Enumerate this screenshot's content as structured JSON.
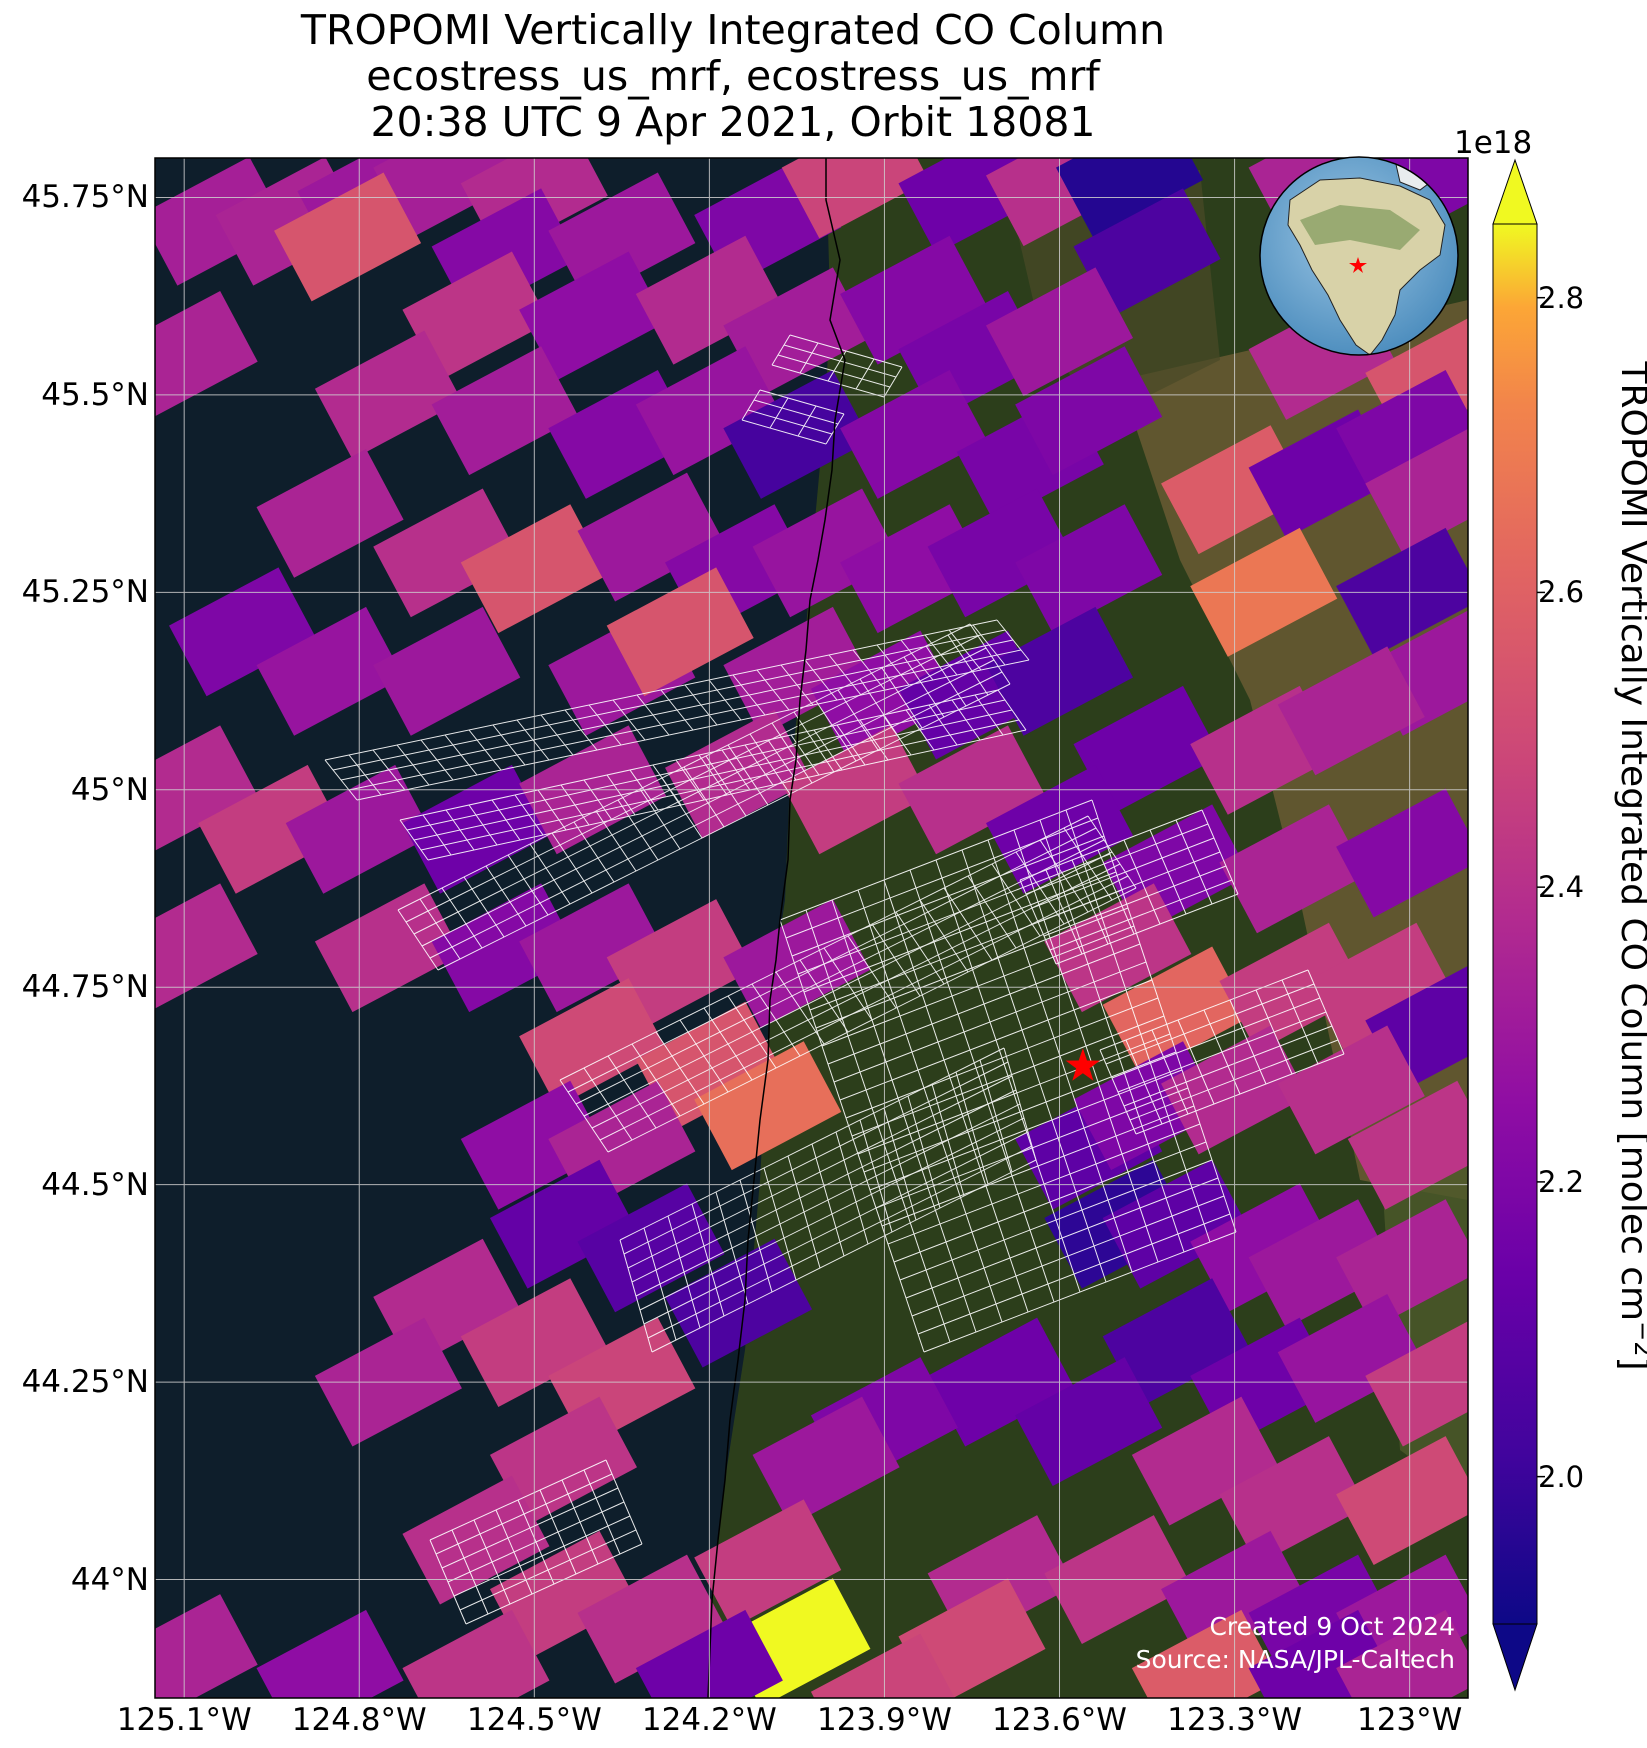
{
  "title": {
    "line1": "TROPOMI Vertically Integrated CO Column",
    "line2": "ecostress_us_mrf, ecostress_us_mrf",
    "line3": "20:38 UTC 9 Apr 2021, Orbit 18081"
  },
  "map": {
    "lat_ticks": [
      "45.75°N",
      "45.5°N",
      "45.25°N",
      "45°N",
      "44.75°N",
      "44.5°N",
      "44.25°N",
      "44°N"
    ],
    "lat_values": [
      45.75,
      45.5,
      45.25,
      45.0,
      44.75,
      44.5,
      44.25,
      44.0
    ],
    "lon_ticks": [
      "125.1°W",
      "124.8°W",
      "124.5°W",
      "124.2°W",
      "123.9°W",
      "123.6°W",
      "123.3°W",
      "123°W"
    ],
    "lon_values": [
      -125.1,
      -124.8,
      -124.5,
      -124.2,
      -123.9,
      -123.6,
      -123.3,
      -123.0
    ],
    "extent": {
      "lon_min": -125.15,
      "lon_max": -122.9,
      "lat_min": 43.85,
      "lat_max": 45.8
    },
    "colors": {
      "ocean": "#0e1e2b",
      "land": "#2c3e1b",
      "farmland": "#6a5a33",
      "grid": "#cfcfcf",
      "coast": "#000000",
      "marker": "#ff0000"
    },
    "target_marker": {
      "lon": -123.56,
      "lat": 44.65,
      "symbol": "red-star"
    },
    "inset_globe": {
      "marker": "red-star",
      "center": "North America"
    }
  },
  "colorbar": {
    "label": "TROPOMI Vertically Integrated CO Column [molec cm",
    "label_exponent": "−2",
    "label_close": "]",
    "exponent": "1e18",
    "ticks": [
      "2.0",
      "2.2",
      "2.4",
      "2.6",
      "2.8"
    ],
    "tick_values": [
      2.0,
      2.2,
      2.4,
      2.6,
      2.8
    ],
    "range": [
      1.9,
      2.85
    ],
    "colormap": "plasma",
    "extend": "both"
  },
  "credits": {
    "created": "Created 9 Oct 2024",
    "source": "Source: NASA/JPL-Caltech"
  },
  "chart_data": {
    "type": "heatmap",
    "description_units": "molec cm-2 (x1e18)",
    "xlabel": "",
    "ylabel": "",
    "xlim": [
      -125.15,
      -122.9
    ],
    "ylim": [
      43.85,
      45.8
    ],
    "vmin": 1.9,
    "vmax": 2.85,
    "tropomi_pixels": [
      {
        "lon": -125.05,
        "lat": 45.72,
        "value": 2.33
      },
      {
        "lon": -124.92,
        "lat": 45.72,
        "value": 2.35
      },
      {
        "lon": -124.78,
        "lat": 45.75,
        "value": 2.3
      },
      {
        "lon": -124.65,
        "lat": 45.78,
        "value": 2.33
      },
      {
        "lon": -124.5,
        "lat": 45.76,
        "value": 2.38
      },
      {
        "lon": -124.82,
        "lat": 45.7,
        "value": 2.55
      },
      {
        "lon": -124.55,
        "lat": 45.68,
        "value": 2.22
      },
      {
        "lon": -124.35,
        "lat": 45.7,
        "value": 2.3
      },
      {
        "lon": -124.1,
        "lat": 45.72,
        "value": 2.2
      },
      {
        "lon": -123.95,
        "lat": 45.78,
        "value": 2.48
      },
      {
        "lon": -123.75,
        "lat": 45.76,
        "value": 2.15
      },
      {
        "lon": -123.6,
        "lat": 45.77,
        "value": 2.4
      },
      {
        "lon": -123.48,
        "lat": 45.78,
        "value": 1.95
      },
      {
        "lon": -123.45,
        "lat": 45.68,
        "value": 2.05
      },
      {
        "lon": -123.15,
        "lat": 45.78,
        "value": 2.35
      },
      {
        "lon": -122.95,
        "lat": 45.78,
        "value": 2.2
      },
      {
        "lon": -124.6,
        "lat": 45.6,
        "value": 2.42
      },
      {
        "lon": -124.4,
        "lat": 45.6,
        "value": 2.25
      },
      {
        "lon": -124.2,
        "lat": 45.62,
        "value": 2.38
      },
      {
        "lon": -124.05,
        "lat": 45.58,
        "value": 2.32
      },
      {
        "lon": -123.85,
        "lat": 45.62,
        "value": 2.22
      },
      {
        "lon": -123.75,
        "lat": 45.55,
        "value": 2.18
      },
      {
        "lon": -123.6,
        "lat": 45.58,
        "value": 2.3
      },
      {
        "lon": -123.15,
        "lat": 45.55,
        "value": 2.38
      },
      {
        "lon": -122.95,
        "lat": 45.52,
        "value": 2.55
      },
      {
        "lon": -125.1,
        "lat": 45.55,
        "value": 2.35
      },
      {
        "lon": -124.75,
        "lat": 45.5,
        "value": 2.38
      },
      {
        "lon": -124.55,
        "lat": 45.48,
        "value": 2.32
      },
      {
        "lon": -124.35,
        "lat": 45.45,
        "value": 2.22
      },
      {
        "lon": -124.2,
        "lat": 45.48,
        "value": 2.28
      },
      {
        "lon": -124.05,
        "lat": 45.45,
        "value": 2.03
      },
      {
        "lon": -123.85,
        "lat": 45.45,
        "value": 2.22
      },
      {
        "lon": -123.65,
        "lat": 45.42,
        "value": 2.18
      },
      {
        "lon": -123.55,
        "lat": 45.48,
        "value": 2.2
      },
      {
        "lon": -123.3,
        "lat": 45.38,
        "value": 2.58
      },
      {
        "lon": -123.15,
        "lat": 45.4,
        "value": 2.15
      },
      {
        "lon": -123.0,
        "lat": 45.45,
        "value": 2.2
      },
      {
        "lon": -122.95,
        "lat": 45.38,
        "value": 2.35
      },
      {
        "lon": -124.85,
        "lat": 45.35,
        "value": 2.35
      },
      {
        "lon": -124.65,
        "lat": 45.3,
        "value": 2.4
      },
      {
        "lon": -124.5,
        "lat": 45.28,
        "value": 2.55
      },
      {
        "lon": -124.3,
        "lat": 45.32,
        "value": 2.3
      },
      {
        "lon": -124.15,
        "lat": 45.28,
        "value": 2.22
      },
      {
        "lon": -124.0,
        "lat": 45.3,
        "value": 2.28
      },
      {
        "lon": -123.85,
        "lat": 45.28,
        "value": 2.25
      },
      {
        "lon": -123.7,
        "lat": 45.3,
        "value": 2.18
      },
      {
        "lon": -123.55,
        "lat": 45.28,
        "value": 2.2
      },
      {
        "lon": -123.25,
        "lat": 45.25,
        "value": 2.68
      },
      {
        "lon": -123.0,
        "lat": 45.25,
        "value": 2.05
      },
      {
        "lon": -122.95,
        "lat": 45.15,
        "value": 2.3
      },
      {
        "lon": -125.0,
        "lat": 45.2,
        "value": 2.2
      },
      {
        "lon": -124.85,
        "lat": 45.15,
        "value": 2.28
      },
      {
        "lon": -124.65,
        "lat": 45.15,
        "value": 2.3
      },
      {
        "lon": -124.35,
        "lat": 45.15,
        "value": 2.3
      },
      {
        "lon": -124.25,
        "lat": 45.2,
        "value": 2.55
      },
      {
        "lon": -124.05,
        "lat": 45.15,
        "value": 2.32
      },
      {
        "lon": -123.9,
        "lat": 45.12,
        "value": 2.25
      },
      {
        "lon": -123.75,
        "lat": 45.12,
        "value": 2.12
      },
      {
        "lon": -123.6,
        "lat": 45.15,
        "value": 2.05
      },
      {
        "lon": -123.45,
        "lat": 45.05,
        "value": 2.15
      },
      {
        "lon": -123.25,
        "lat": 45.05,
        "value": 2.4
      },
      {
        "lon": -123.1,
        "lat": 45.1,
        "value": 2.35
      },
      {
        "lon": -125.1,
        "lat": 45.0,
        "value": 2.38
      },
      {
        "lon": -124.95,
        "lat": 44.95,
        "value": 2.45
      },
      {
        "lon": -124.8,
        "lat": 44.95,
        "value": 2.3
      },
      {
        "lon": -124.6,
        "lat": 44.95,
        "value": 2.15
      },
      {
        "lon": -124.4,
        "lat": 45.0,
        "value": 2.35
      },
      {
        "lon": -124.15,
        "lat": 45.02,
        "value": 2.38
      },
      {
        "lon": -123.95,
        "lat": 45.0,
        "value": 2.45
      },
      {
        "lon": -123.75,
        "lat": 45.0,
        "value": 2.4
      },
      {
        "lon": -123.6,
        "lat": 44.95,
        "value": 2.15
      },
      {
        "lon": -123.4,
        "lat": 44.9,
        "value": 2.2
      },
      {
        "lon": -123.2,
        "lat": 44.9,
        "value": 2.35
      },
      {
        "lon": -123.0,
        "lat": 44.92,
        "value": 2.22
      },
      {
        "lon": -125.1,
        "lat": 44.8,
        "value": 2.38
      },
      {
        "lon": -124.75,
        "lat": 44.8,
        "value": 2.4
      },
      {
        "lon": -124.55,
        "lat": 44.8,
        "value": 2.22
      },
      {
        "lon": -124.4,
        "lat": 44.8,
        "value": 2.3
      },
      {
        "lon": -124.25,
        "lat": 44.78,
        "value": 2.45
      },
      {
        "lon": -124.05,
        "lat": 44.78,
        "value": 2.3
      },
      {
        "lon": -123.5,
        "lat": 44.8,
        "value": 2.42
      },
      {
        "lon": -123.4,
        "lat": 44.72,
        "value": 2.62
      },
      {
        "lon": -123.2,
        "lat": 44.75,
        "value": 2.45
      },
      {
        "lon": -123.05,
        "lat": 44.75,
        "value": 2.45
      },
      {
        "lon": -122.95,
        "lat": 44.7,
        "value": 2.1
      },
      {
        "lon": -124.4,
        "lat": 44.68,
        "value": 2.5
      },
      {
        "lon": -124.2,
        "lat": 44.65,
        "value": 2.55
      },
      {
        "lon": -124.1,
        "lat": 44.6,
        "value": 2.65
      },
      {
        "lon": -124.5,
        "lat": 44.55,
        "value": 2.25
      },
      {
        "lon": -124.35,
        "lat": 44.55,
        "value": 2.35
      },
      {
        "lon": -123.55,
        "lat": 44.55,
        "value": 2.1
      },
      {
        "lon": -123.45,
        "lat": 44.6,
        "value": 2.2
      },
      {
        "lon": -123.3,
        "lat": 44.62,
        "value": 2.38
      },
      {
        "lon": -123.1,
        "lat": 44.62,
        "value": 2.4
      },
      {
        "lon": -122.98,
        "lat": 44.55,
        "value": 2.42
      },
      {
        "lon": -124.45,
        "lat": 44.45,
        "value": 2.12
      },
      {
        "lon": -124.3,
        "lat": 44.42,
        "value": 2.08
      },
      {
        "lon": -124.15,
        "lat": 44.35,
        "value": 2.05
      },
      {
        "lon": -123.5,
        "lat": 44.45,
        "value": 1.97
      },
      {
        "lon": -123.4,
        "lat": 44.45,
        "value": 2.1
      },
      {
        "lon": -123.25,
        "lat": 44.42,
        "value": 2.25
      },
      {
        "lon": -123.15,
        "lat": 44.4,
        "value": 2.3
      },
      {
        "lon": -123.0,
        "lat": 44.4,
        "value": 2.35
      },
      {
        "lon": -124.65,
        "lat": 44.35,
        "value": 2.38
      },
      {
        "lon": -124.5,
        "lat": 44.3,
        "value": 2.45
      },
      {
        "lon": -124.35,
        "lat": 44.25,
        "value": 2.48
      },
      {
        "lon": -124.75,
        "lat": 44.25,
        "value": 2.35
      },
      {
        "lon": -124.45,
        "lat": 44.15,
        "value": 2.42
      },
      {
        "lon": -123.4,
        "lat": 44.3,
        "value": 2.05
      },
      {
        "lon": -123.25,
        "lat": 44.25,
        "value": 2.15
      },
      {
        "lon": -123.1,
        "lat": 44.28,
        "value": 2.28
      },
      {
        "lon": -122.95,
        "lat": 44.25,
        "value": 2.45
      },
      {
        "lon": -123.7,
        "lat": 44.25,
        "value": 2.15
      },
      {
        "lon": -123.9,
        "lat": 44.2,
        "value": 2.2
      },
      {
        "lon": -123.55,
        "lat": 44.2,
        "value": 2.12
      },
      {
        "lon": -124.0,
        "lat": 44.15,
        "value": 2.3
      },
      {
        "lon": -123.35,
        "lat": 44.15,
        "value": 2.38
      },
      {
        "lon": -123.2,
        "lat": 44.1,
        "value": 2.4
      },
      {
        "lon": -123.0,
        "lat": 44.1,
        "value": 2.5
      },
      {
        "lon": -124.6,
        "lat": 44.05,
        "value": 2.4
      },
      {
        "lon": -124.45,
        "lat": 43.98,
        "value": 2.45
      },
      {
        "lon": -124.3,
        "lat": 43.95,
        "value": 2.4
      },
      {
        "lon": -124.1,
        "lat": 44.02,
        "value": 2.45
      },
      {
        "lon": -124.05,
        "lat": 43.92,
        "value": 2.85
      },
      {
        "lon": -123.7,
        "lat": 44.0,
        "value": 2.38
      },
      {
        "lon": -123.5,
        "lat": 44.0,
        "value": 2.42
      },
      {
        "lon": -123.3,
        "lat": 43.98,
        "value": 2.3
      },
      {
        "lon": -123.15,
        "lat": 43.95,
        "value": 2.18
      },
      {
        "lon": -123.0,
        "lat": 43.95,
        "value": 2.3
      },
      {
        "lon": -123.75,
        "lat": 43.92,
        "value": 2.5
      },
      {
        "lon": -123.35,
        "lat": 43.88,
        "value": 2.58
      },
      {
        "lon": -123.15,
        "lat": 43.88,
        "value": 2.15
      },
      {
        "lon": -123.0,
        "lat": 43.88,
        "value": 2.35
      },
      {
        "lon": -125.1,
        "lat": 43.9,
        "value": 2.35
      },
      {
        "lon": -124.85,
        "lat": 43.88,
        "value": 2.25
      },
      {
        "lon": -124.6,
        "lat": 43.88,
        "value": 2.42
      },
      {
        "lon": -124.2,
        "lat": 43.88,
        "value": 2.15
      },
      {
        "lon": -123.9,
        "lat": 43.85,
        "value": 2.48
      }
    ]
  }
}
